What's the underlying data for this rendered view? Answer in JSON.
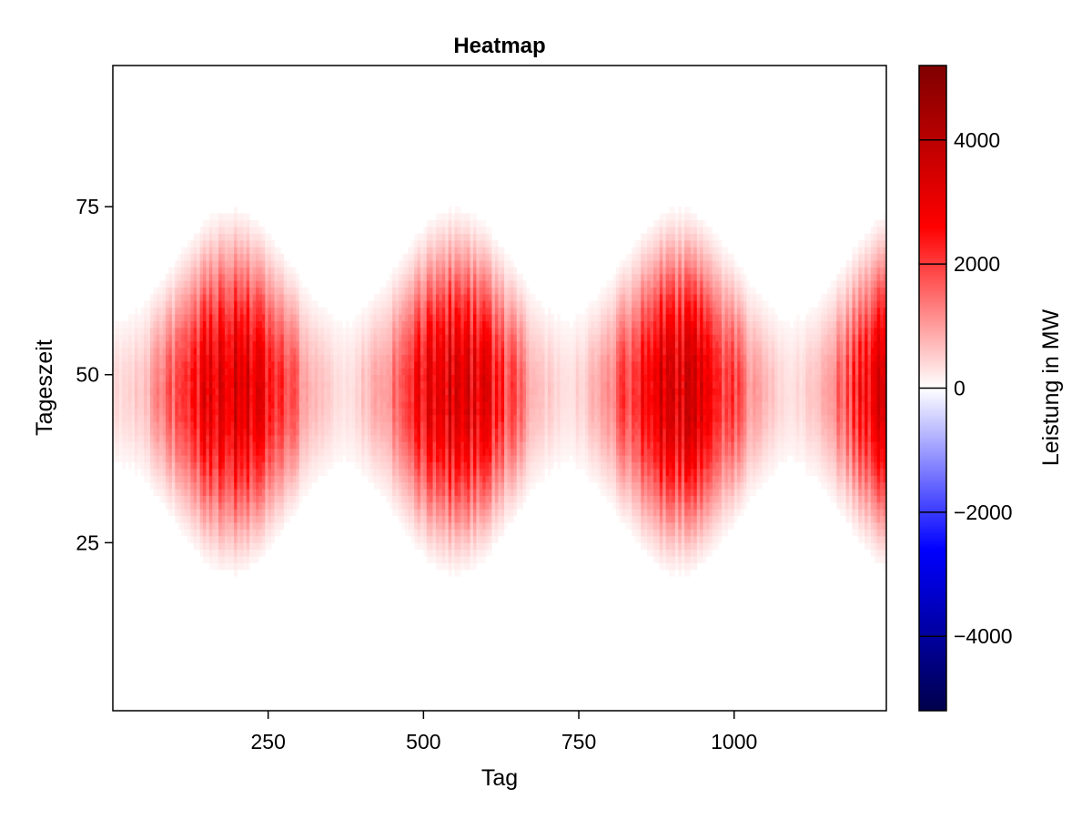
{
  "chart_data": {
    "type": "heatmap",
    "title": "Heatmap",
    "xlabel": "Tag",
    "ylabel": "Tageszeit",
    "xlim": [
      0,
      1245
    ],
    "ylim": [
      0,
      96
    ],
    "x_ticks": [
      250,
      500,
      750,
      1000
    ],
    "y_ticks": [
      25,
      50,
      75
    ],
    "colorbar": {
      "label": "Leistung in MW",
      "range": [
        -5200,
        5200
      ],
      "ticks": [
        -4000,
        -2000,
        0,
        2000,
        4000
      ],
      "colormap": [
        "#00004c",
        "#0000ff",
        "#ffffff",
        "#ff0000",
        "#7f0000"
      ]
    },
    "pattern": {
      "description_values": "daily power output peaks around midday slot 48, seasonal cycle with maxima near days 190, 540, 900, 1240 and minima near days 360, 720, 1080",
      "peak_slot": 48,
      "summer_peak_days": [
        190,
        540,
        900,
        1240
      ],
      "winter_min_days": [
        360,
        720,
        1080
      ],
      "summer_max_mw": 4300,
      "winter_max_mw": 500,
      "summer_half_width_slots": 29,
      "winter_half_width_slots": 14
    },
    "grid": false,
    "legend": "colorbar-right"
  }
}
